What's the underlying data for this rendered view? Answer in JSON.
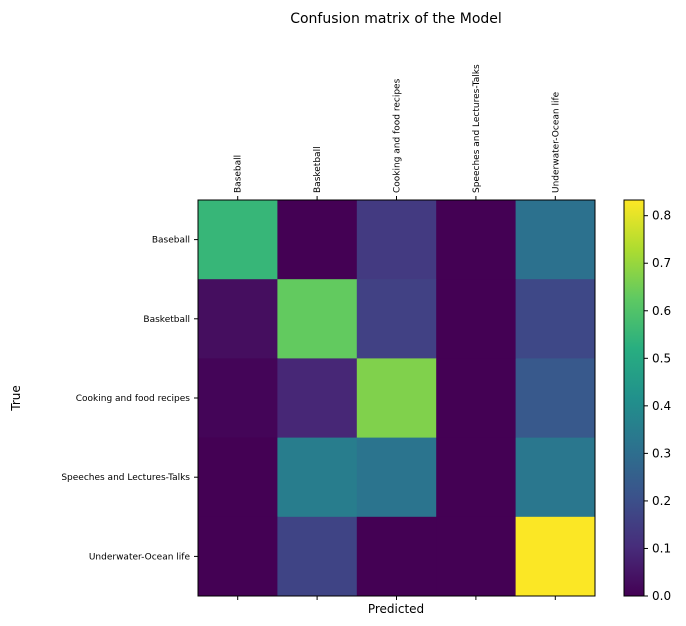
{
  "chart_data": {
    "type": "heatmap",
    "title": "Confusion matrix of the Model",
    "xlabel": "Predicted",
    "ylabel": "True",
    "x_categories": [
      "Baseball",
      "Basketball",
      "Cooking and food recipes",
      "Speeches and Lectures-Talks",
      "Underwater-Ocean life"
    ],
    "y_categories": [
      "Baseball",
      "Basketball",
      "Cooking and food recipes",
      "Speeches and Lectures-Talks",
      "Underwater-Ocean life"
    ],
    "values": [
      [
        0.55,
        0.0,
        0.14,
        0.0,
        0.31
      ],
      [
        0.03,
        0.63,
        0.16,
        0.0,
        0.18
      ],
      [
        0.01,
        0.09,
        0.67,
        0.0,
        0.23
      ],
      [
        0.0,
        0.35,
        0.32,
        0.0,
        0.33
      ],
      [
        0.0,
        0.17,
        0.0,
        0.0,
        0.83
      ]
    ],
    "colorbar": {
      "min": 0.0,
      "max": 0.833,
      "ticks": [
        "0.0",
        "0.1",
        "0.2",
        "0.3",
        "0.4",
        "0.5",
        "0.6",
        "0.7",
        "0.8"
      ],
      "colormap": "viridis"
    },
    "x_tick_position": "top",
    "grid": false
  }
}
